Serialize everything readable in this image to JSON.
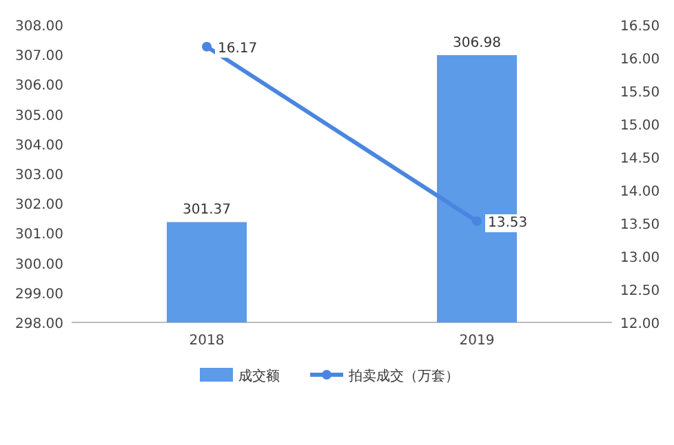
{
  "chart_data": {
    "type": "bar",
    "categories": [
      "2018",
      "2019"
    ],
    "series": [
      {
        "name": "成交额",
        "color": "#5b9be8",
        "values": [
          301.37,
          306.98
        ]
      },
      {
        "name": "拍卖成交（万套）",
        "type": "line",
        "axis": "y2",
        "color": "#4a86e0",
        "marker": "circle",
        "values": [
          16.17,
          13.53
        ]
      }
    ],
    "ylim": [
      298,
      308
    ],
    "yticks": [
      {
        "value": 298,
        "label": "298.00"
      },
      {
        "value": 299,
        "label": "299.00"
      },
      {
        "value": 300,
        "label": "300.00"
      },
      {
        "value": 301,
        "label": "301.00"
      },
      {
        "value": 302,
        "label": "302.00"
      },
      {
        "value": 303,
        "label": "303.00"
      },
      {
        "value": 304,
        "label": "304.00"
      },
      {
        "value": 305,
        "label": "305.00"
      },
      {
        "value": 306,
        "label": "306.00"
      },
      {
        "value": 307,
        "label": "307.00"
      },
      {
        "value": 308,
        "label": "308.00"
      }
    ],
    "y2lim": [
      12,
      16.5
    ],
    "y2ticks": [
      {
        "value": 12,
        "label": "12.00"
      },
      {
        "value": 12.5,
        "label": "12.50"
      },
      {
        "value": 13,
        "label": "13.00"
      },
      {
        "value": 13.5,
        "label": "13.50"
      },
      {
        "value": 14,
        "label": "14.00"
      },
      {
        "value": 14.5,
        "label": "14.50"
      },
      {
        "value": 15,
        "label": "15.00"
      },
      {
        "value": 15.5,
        "label": "15.50"
      },
      {
        "value": 16,
        "label": "16.00"
      },
      {
        "value": 16.5,
        "label": "16.50"
      }
    ],
    "data_labels": true,
    "grid": false,
    "legend": "bottom"
  }
}
